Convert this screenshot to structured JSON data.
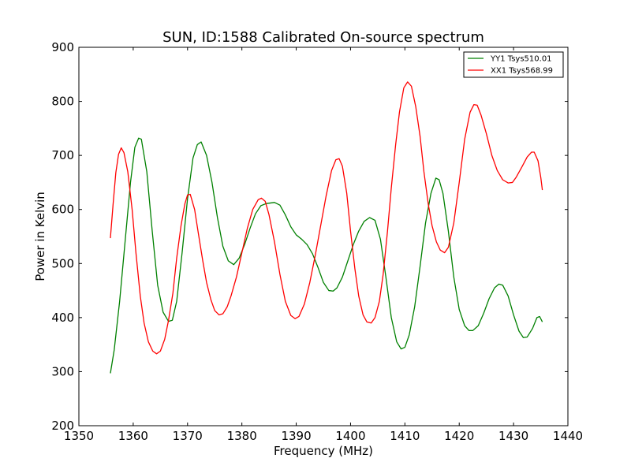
{
  "chart_data": {
    "type": "line",
    "title": "SUN, ID:1588 Calibrated On-source spectrum",
    "xlabel": "Frequency (MHz)",
    "ylabel": "Power in Kelvin",
    "xlim": [
      1350,
      1440
    ],
    "ylim": [
      200,
      900
    ],
    "xticks": [
      1350,
      1360,
      1370,
      1380,
      1390,
      1400,
      1410,
      1420,
      1430,
      1440
    ],
    "yticks": [
      200,
      300,
      400,
      500,
      600,
      700,
      800,
      900
    ],
    "grid": false,
    "legend_position": "top-right",
    "series": [
      {
        "name": "YY1 Tsys510.01",
        "color": "#008000",
        "points": [
          [
            1355.8,
            297
          ],
          [
            1356.5,
            340
          ],
          [
            1357.5,
            430
          ],
          [
            1358.5,
            540
          ],
          [
            1359.5,
            650
          ],
          [
            1360.3,
            715
          ],
          [
            1361.0,
            732
          ],
          [
            1361.5,
            730
          ],
          [
            1362.5,
            670
          ],
          [
            1363.5,
            560
          ],
          [
            1364.5,
            460
          ],
          [
            1365.5,
            410
          ],
          [
            1366.5,
            393
          ],
          [
            1367.2,
            395
          ],
          [
            1368.0,
            430
          ],
          [
            1369.0,
            520
          ],
          [
            1370.0,
            620
          ],
          [
            1371.0,
            695
          ],
          [
            1371.8,
            720
          ],
          [
            1372.5,
            725
          ],
          [
            1373.5,
            700
          ],
          [
            1374.5,
            650
          ],
          [
            1375.5,
            585
          ],
          [
            1376.5,
            532
          ],
          [
            1377.5,
            505
          ],
          [
            1378.5,
            498
          ],
          [
            1379.5,
            510
          ],
          [
            1380.5,
            535
          ],
          [
            1381.5,
            565
          ],
          [
            1382.5,
            592
          ],
          [
            1383.5,
            607
          ],
          [
            1384.5,
            611
          ],
          [
            1386.0,
            613
          ],
          [
            1387.0,
            608
          ],
          [
            1388.0,
            590
          ],
          [
            1389.0,
            568
          ],
          [
            1390.0,
            553
          ],
          [
            1391.0,
            545
          ],
          [
            1392.0,
            535
          ],
          [
            1393.0,
            518
          ],
          [
            1394.0,
            493
          ],
          [
            1395.0,
            465
          ],
          [
            1396.0,
            450
          ],
          [
            1396.8,
            449
          ],
          [
            1397.5,
            455
          ],
          [
            1398.5,
            475
          ],
          [
            1399.5,
            505
          ],
          [
            1400.5,
            535
          ],
          [
            1401.5,
            560
          ],
          [
            1402.5,
            578
          ],
          [
            1403.5,
            585
          ],
          [
            1404.5,
            580
          ],
          [
            1405.5,
            545
          ],
          [
            1406.5,
            475
          ],
          [
            1407.5,
            400
          ],
          [
            1408.5,
            355
          ],
          [
            1409.3,
            342
          ],
          [
            1410.0,
            345
          ],
          [
            1410.8,
            368
          ],
          [
            1411.8,
            420
          ],
          [
            1412.8,
            495
          ],
          [
            1413.8,
            575
          ],
          [
            1414.8,
            630
          ],
          [
            1415.7,
            658
          ],
          [
            1416.3,
            655
          ],
          [
            1417.0,
            630
          ],
          [
            1418.0,
            560
          ],
          [
            1419.0,
            475
          ],
          [
            1420.0,
            415
          ],
          [
            1421.0,
            385
          ],
          [
            1421.8,
            376
          ],
          [
            1422.5,
            376
          ],
          [
            1423.5,
            385
          ],
          [
            1424.5,
            408
          ],
          [
            1425.5,
            435
          ],
          [
            1426.5,
            455
          ],
          [
            1427.3,
            462
          ],
          [
            1428.0,
            460
          ],
          [
            1429.0,
            440
          ],
          [
            1430.0,
            405
          ],
          [
            1431.0,
            375
          ],
          [
            1431.8,
            363
          ],
          [
            1432.5,
            364
          ],
          [
            1433.5,
            380
          ],
          [
            1434.3,
            400
          ],
          [
            1434.8,
            402
          ],
          [
            1435.3,
            392
          ]
        ]
      },
      {
        "name": "XX1 Tsys568.99",
        "color": "#ff0000",
        "points": [
          [
            1355.8,
            547
          ],
          [
            1356.3,
            610
          ],
          [
            1356.8,
            668
          ],
          [
            1357.3,
            702
          ],
          [
            1357.8,
            714
          ],
          [
            1358.3,
            705
          ],
          [
            1359.0,
            670
          ],
          [
            1359.8,
            600
          ],
          [
            1360.5,
            520
          ],
          [
            1361.3,
            440
          ],
          [
            1362.0,
            390
          ],
          [
            1362.8,
            355
          ],
          [
            1363.6,
            338
          ],
          [
            1364.3,
            333
          ],
          [
            1365.0,
            338
          ],
          [
            1365.8,
            360
          ],
          [
            1366.5,
            395
          ],
          [
            1367.3,
            445
          ],
          [
            1368.0,
            510
          ],
          [
            1368.8,
            570
          ],
          [
            1369.5,
            610
          ],
          [
            1370.0,
            627
          ],
          [
            1370.5,
            628
          ],
          [
            1371.3,
            600
          ],
          [
            1372.0,
            555
          ],
          [
            1372.8,
            505
          ],
          [
            1373.5,
            465
          ],
          [
            1374.3,
            433
          ],
          [
            1375.0,
            413
          ],
          [
            1375.8,
            405
          ],
          [
            1376.5,
            407
          ],
          [
            1377.3,
            420
          ],
          [
            1378.0,
            440
          ],
          [
            1379.0,
            475
          ],
          [
            1380.0,
            520
          ],
          [
            1381.0,
            565
          ],
          [
            1382.0,
            600
          ],
          [
            1383.0,
            618
          ],
          [
            1383.6,
            621
          ],
          [
            1384.3,
            615
          ],
          [
            1385.0,
            590
          ],
          [
            1386.0,
            540
          ],
          [
            1387.0,
            480
          ],
          [
            1388.0,
            430
          ],
          [
            1389.0,
            404
          ],
          [
            1389.8,
            398
          ],
          [
            1390.5,
            402
          ],
          [
            1391.5,
            425
          ],
          [
            1392.5,
            465
          ],
          [
            1393.5,
            515
          ],
          [
            1394.5,
            570
          ],
          [
            1395.5,
            625
          ],
          [
            1396.5,
            672
          ],
          [
            1397.3,
            692
          ],
          [
            1397.9,
            694
          ],
          [
            1398.5,
            680
          ],
          [
            1399.3,
            630
          ],
          [
            1400.0,
            560
          ],
          [
            1400.8,
            490
          ],
          [
            1401.5,
            440
          ],
          [
            1402.3,
            405
          ],
          [
            1403.0,
            392
          ],
          [
            1403.8,
            390
          ],
          [
            1404.5,
            400
          ],
          [
            1405.3,
            430
          ],
          [
            1406.0,
            480
          ],
          [
            1406.8,
            560
          ],
          [
            1407.5,
            640
          ],
          [
            1408.3,
            720
          ],
          [
            1409.0,
            780
          ],
          [
            1409.8,
            825
          ],
          [
            1410.5,
            836
          ],
          [
            1411.2,
            828
          ],
          [
            1412.0,
            790
          ],
          [
            1412.8,
            735
          ],
          [
            1413.5,
            670
          ],
          [
            1414.3,
            610
          ],
          [
            1415.0,
            570
          ],
          [
            1415.8,
            540
          ],
          [
            1416.5,
            525
          ],
          [
            1417.3,
            520
          ],
          [
            1418.0,
            530
          ],
          [
            1419.0,
            575
          ],
          [
            1420.0,
            650
          ],
          [
            1421.0,
            730
          ],
          [
            1422.0,
            780
          ],
          [
            1422.7,
            794
          ],
          [
            1423.3,
            793
          ],
          [
            1424.0,
            775
          ],
          [
            1425.0,
            740
          ],
          [
            1426.0,
            700
          ],
          [
            1427.0,
            672
          ],
          [
            1428.0,
            655
          ],
          [
            1429.0,
            649
          ],
          [
            1429.8,
            650
          ],
          [
            1430.5,
            660
          ],
          [
            1431.5,
            678
          ],
          [
            1432.5,
            697
          ],
          [
            1433.3,
            706
          ],
          [
            1433.8,
            706
          ],
          [
            1434.5,
            690
          ],
          [
            1435.0,
            660
          ],
          [
            1435.3,
            636
          ]
        ]
      }
    ]
  }
}
